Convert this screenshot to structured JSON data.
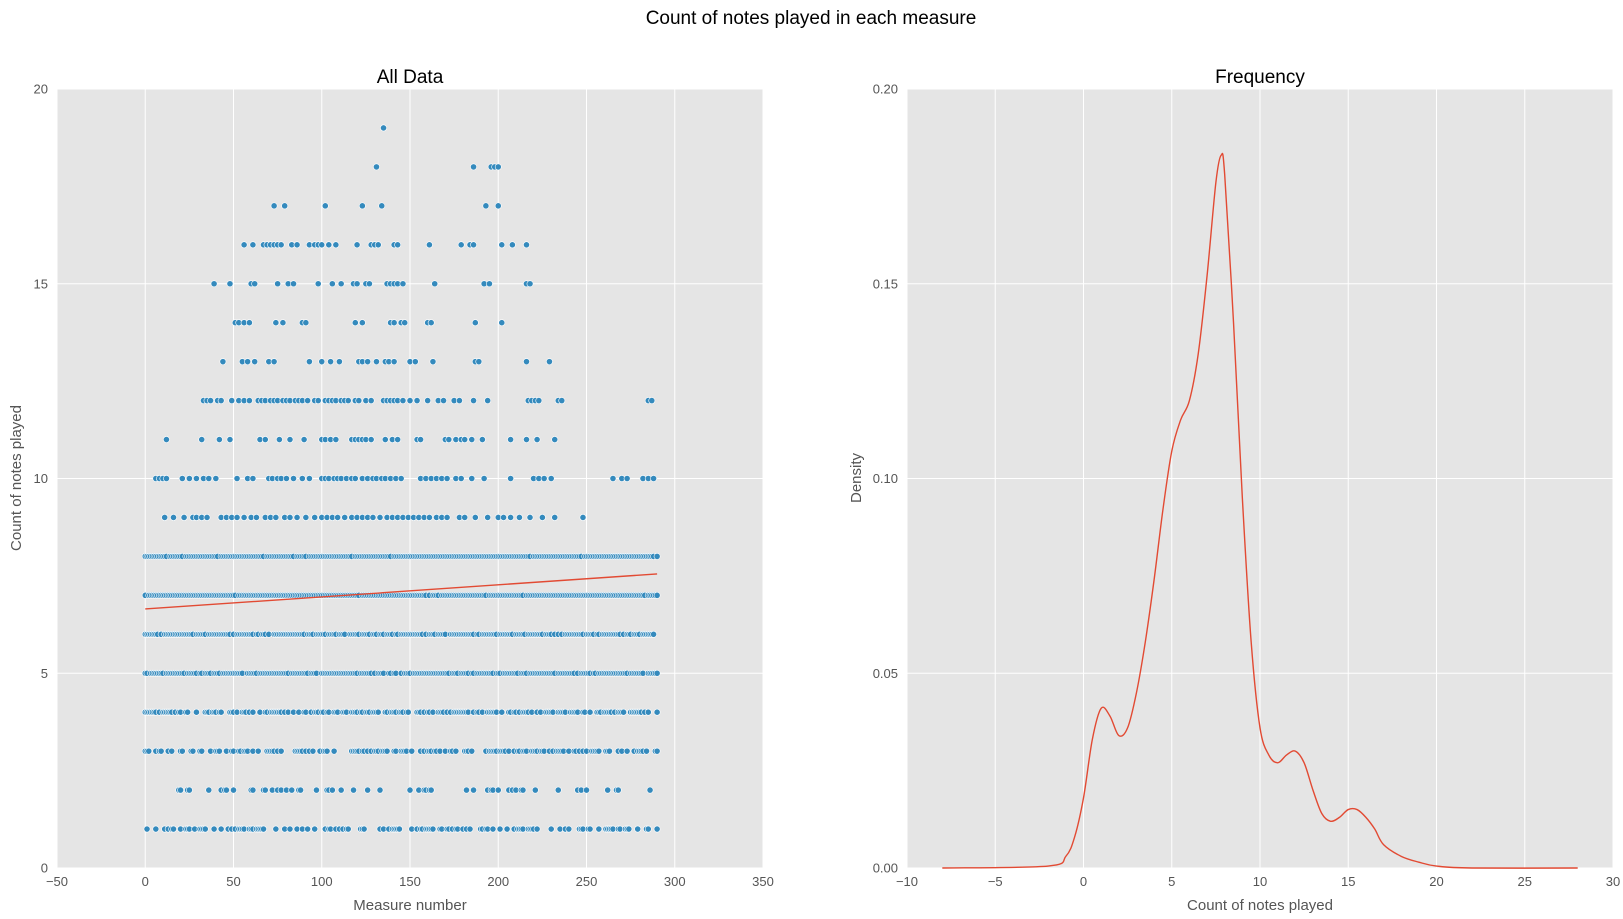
{
  "figure_title": "Count of notes played in each measure",
  "colors": {
    "panel_bg": "#E5E5E5",
    "grid": "#FFFFFF",
    "scatter": "#348ABD",
    "line": "#E24A33"
  },
  "chart_data": [
    {
      "type": "scatter",
      "title": "All Data",
      "xlabel": "Measure number",
      "ylabel": "Count of notes played",
      "xlim": [
        -50,
        350
      ],
      "ylim": [
        0,
        20
      ],
      "xticks": [
        "−50",
        "0",
        "50",
        "100",
        "150",
        "200",
        "250",
        "300",
        "350"
      ],
      "yticks": [
        "0",
        "5",
        "10",
        "15",
        "20"
      ],
      "grid": true,
      "points_by_count": {
        "19": [
          135
        ],
        "18": [
          131,
          186,
          196,
          198,
          200
        ],
        "17": [
          73,
          79,
          102,
          123,
          134,
          193,
          200
        ],
        "16": [
          56,
          61,
          67,
          69,
          71,
          73,
          75,
          77,
          83,
          86,
          93,
          96,
          98,
          100,
          104,
          108,
          120,
          128,
          130,
          132,
          141,
          143,
          161,
          179,
          184,
          186,
          202,
          208,
          216
        ],
        "15": [
          39,
          48,
          60,
          62,
          75,
          81,
          84,
          98,
          106,
          111,
          118,
          120,
          125,
          127,
          137,
          139,
          141,
          143,
          146,
          164,
          192,
          195,
          216,
          218
        ],
        "14": [
          51,
          53,
          56,
          59,
          74,
          78,
          89,
          91,
          119,
          123,
          139,
          141,
          145,
          147,
          160,
          162,
          187,
          202
        ],
        "13": [
          44,
          55,
          58,
          62,
          70,
          73,
          93,
          100,
          105,
          110,
          121,
          123,
          126,
          131,
          136,
          138,
          141,
          150,
          153,
          163,
          187,
          189,
          216,
          229
        ],
        "12": [
          33,
          35,
          37,
          41,
          43,
          49,
          53,
          56,
          59,
          64,
          66,
          68,
          71,
          73,
          75,
          78,
          80,
          82,
          85,
          87,
          89,
          92,
          96,
          98,
          102,
          104,
          106,
          108,
          111,
          113,
          115,
          119,
          121,
          125,
          128,
          135,
          137,
          139,
          141,
          143,
          146,
          150,
          154,
          160,
          166,
          169,
          175,
          178,
          186,
          194,
          217,
          219,
          221,
          223,
          234,
          236,
          285,
          287
        ],
        "11": [
          12,
          32,
          42,
          48,
          65,
          68,
          76,
          82,
          90,
          100,
          102,
          105,
          108,
          117,
          119,
          121,
          123,
          125,
          128,
          136,
          140,
          143,
          154,
          156,
          170,
          172,
          176,
          179,
          181,
          185,
          191,
          207,
          216,
          222,
          232
        ],
        "10": [
          6,
          8,
          10,
          12,
          21,
          25,
          29,
          33,
          36,
          40,
          52,
          58,
          61,
          70,
          72,
          75,
          77,
          80,
          84,
          89,
          93,
          100,
          102,
          104,
          107,
          109,
          111,
          114,
          117,
          119,
          123,
          126,
          129,
          131,
          134,
          136,
          139,
          142,
          145,
          156,
          159,
          162,
          165,
          168,
          171,
          176,
          179,
          185,
          192,
          207,
          220,
          223,
          226,
          230,
          265,
          270,
          273,
          282,
          285,
          288
        ],
        "9": [
          11,
          16,
          22,
          27,
          29,
          32,
          35,
          43,
          46,
          49,
          52,
          56,
          60,
          63,
          68,
          71,
          74,
          79,
          82,
          86,
          91,
          96,
          100,
          103,
          106,
          109,
          113,
          117,
          120,
          123,
          126,
          129,
          133,
          137,
          140,
          143,
          146,
          149,
          152,
          155,
          158,
          161,
          165,
          168,
          171,
          178,
          181,
          187,
          194,
          200,
          203,
          207,
          212,
          218,
          225,
          232,
          248
        ]
      },
      "dense_counts": [
        1,
        2,
        3,
        4,
        5,
        6,
        7,
        8
      ],
      "dense_x_range": [
        0,
        290
      ],
      "regression": {
        "x": [
          0,
          290
        ],
        "y": [
          6.65,
          7.55
        ]
      }
    },
    {
      "type": "line",
      "title": "Frequency",
      "xlabel": "Count of notes played",
      "ylabel": "Density",
      "xlim": [
        -10,
        30
      ],
      "ylim": [
        0,
        0.2
      ],
      "xticks": [
        "−10",
        "−5",
        "0",
        "5",
        "10",
        "15",
        "20",
        "25",
        "30"
      ],
      "yticks": [
        "0.00",
        "0.05",
        "0.10",
        "0.15",
        "0.20"
      ],
      "grid": true,
      "x": [
        -8,
        -2,
        -1,
        -0.5,
        0,
        0.5,
        1,
        1.5,
        2,
        2.5,
        3,
        3.5,
        4,
        4.5,
        5,
        5.5,
        6,
        6.5,
        7,
        7.5,
        7.8,
        8,
        8.5,
        9,
        9.5,
        10,
        10.5,
        11,
        11.5,
        12,
        12.5,
        13,
        13.5,
        14,
        14.5,
        15,
        15.5,
        16,
        16.5,
        17,
        18,
        19,
        20,
        22,
        28
      ],
      "y": [
        0,
        0.0005,
        0.003,
        0.008,
        0.018,
        0.033,
        0.041,
        0.039,
        0.034,
        0.036,
        0.045,
        0.058,
        0.074,
        0.092,
        0.107,
        0.115,
        0.12,
        0.132,
        0.152,
        0.176,
        0.183,
        0.178,
        0.14,
        0.095,
        0.058,
        0.036,
        0.029,
        0.027,
        0.029,
        0.03,
        0.027,
        0.02,
        0.014,
        0.012,
        0.013,
        0.015,
        0.015,
        0.013,
        0.01,
        0.006,
        0.003,
        0.0015,
        0.0005,
        0,
        0
      ]
    }
  ]
}
